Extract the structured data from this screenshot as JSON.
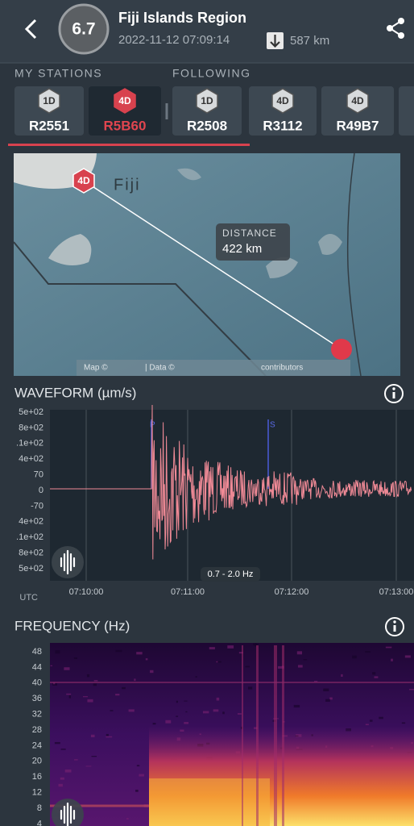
{
  "header": {
    "magnitude": "6.7",
    "title": "Fiji Islands Region",
    "datetime": "2022-11-12 07:09:14",
    "depth": "587 km"
  },
  "stations": {
    "my_label": "MY STATIONS",
    "following_label": "FOLLOWING",
    "items": [
      {
        "badge": "1D",
        "name": "R2551"
      },
      {
        "badge": "4D",
        "name": "R5B60"
      },
      {
        "badge": "1D",
        "name": "R2508"
      },
      {
        "badge": "4D",
        "name": "R3112"
      },
      {
        "badge": "4D",
        "name": "R49B7"
      }
    ]
  },
  "map": {
    "station_badge": "4D",
    "place": "Fiji",
    "distance_label": "DISTANCE",
    "distance": "422 km",
    "attribution_map": "Map ©",
    "attribution_data": "| Data ©",
    "attribution_contrib": "contributors"
  },
  "waveform": {
    "title": "WAVEFORM (µm/s)",
    "y_ticks": [
      "5e+02",
      "8e+02",
      ".1e+02",
      "4e+02",
      "70",
      "0",
      "-70",
      "4e+02",
      ".1e+02",
      "8e+02",
      "5e+02"
    ],
    "p_marker": "P",
    "s_marker": "S",
    "filter": "0.7 - 2.0 Hz",
    "timezone": "UTC",
    "x_ticks": [
      "07:10:00",
      "07:11:00",
      "07:12:00",
      "07:13:00"
    ]
  },
  "frequency": {
    "title": "FREQUENCY (Hz)",
    "y_ticks": [
      "48",
      "44",
      "40",
      "36",
      "32",
      "28",
      "24",
      "20",
      "16",
      "12",
      "8",
      "4"
    ]
  }
}
